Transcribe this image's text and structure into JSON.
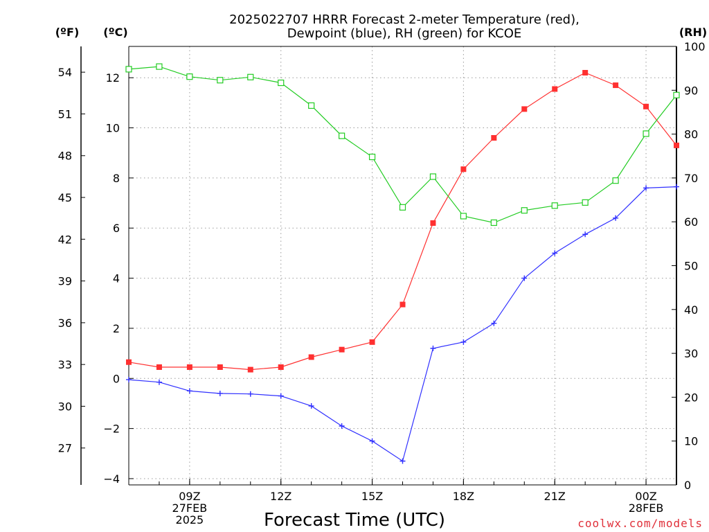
{
  "chart_data": {
    "type": "line",
    "title_lines": [
      "2025022707 HRRR Forecast 2-meter Temperature (red),",
      "Dewpoint (blue), RH (green) for KCOE"
    ],
    "xlabel": "Forecast Time (UTC)",
    "credit": "coolwx.com/models",
    "units": {
      "fahrenheit": "(ºF)",
      "celsius": "(ºC)",
      "rh": "(RH)"
    },
    "x": [
      7,
      8,
      9,
      10,
      11,
      12,
      13,
      14,
      15,
      16,
      17,
      18,
      19,
      20,
      21,
      22,
      23,
      24,
      25
    ],
    "xlim": [
      7,
      25
    ],
    "x_ticks": [
      {
        "x": 9,
        "lines": [
          "09Z",
          "27FEB",
          "2025"
        ]
      },
      {
        "x": 12,
        "lines": [
          "12Z"
        ]
      },
      {
        "x": 15,
        "lines": [
          "15Z"
        ]
      },
      {
        "x": 18,
        "lines": [
          "18Z"
        ]
      },
      {
        "x": 21,
        "lines": [
          "21Z"
        ]
      },
      {
        "x": 24,
        "lines": [
          "00Z",
          "28FEB"
        ]
      }
    ],
    "celsius_axis": {
      "ylim": [
        -4.25,
        13.25
      ],
      "ticks": [
        -4,
        -2,
        0,
        2,
        4,
        6,
        8,
        10,
        12
      ]
    },
    "fahrenheit_axis": {
      "ticks": [
        27,
        30,
        33,
        36,
        39,
        42,
        45,
        48,
        51,
        54
      ]
    },
    "rh_axis": {
      "ylim": [
        0,
        100
      ],
      "ticks": [
        0,
        10,
        20,
        30,
        40,
        50,
        60,
        70,
        80,
        90,
        100
      ]
    },
    "grid": true,
    "series": [
      {
        "key": "temperature",
        "axis": "celsius",
        "color": "#ff3030",
        "marker": "filled-square",
        "values": [
          0.65,
          0.45,
          0.45,
          0.45,
          0.35,
          0.45,
          0.85,
          1.15,
          1.45,
          2.95,
          6.2,
          8.35,
          9.6,
          10.75,
          11.55,
          12.2,
          11.7,
          10.85,
          9.3
        ]
      },
      {
        "key": "dewpoint",
        "axis": "celsius",
        "color": "#3030ff",
        "marker": "plus",
        "values": [
          -0.05,
          -0.15,
          -0.5,
          -0.6,
          -0.62,
          -0.7,
          -1.1,
          -1.9,
          -2.5,
          -3.3,
          1.2,
          1.45,
          2.2,
          4.0,
          5.0,
          5.75,
          6.4,
          7.6,
          7.65
        ]
      },
      {
        "key": "rh",
        "axis": "rh",
        "color": "#22cc22",
        "marker": "open-square",
        "values": [
          94.8,
          95.4,
          93.1,
          92.3,
          93.0,
          91.7,
          86.5,
          79.6,
          74.8,
          63.3,
          70.3,
          61.3,
          59.8,
          62.6,
          63.7,
          64.4,
          69.4,
          80.1,
          88.9
        ]
      }
    ]
  }
}
